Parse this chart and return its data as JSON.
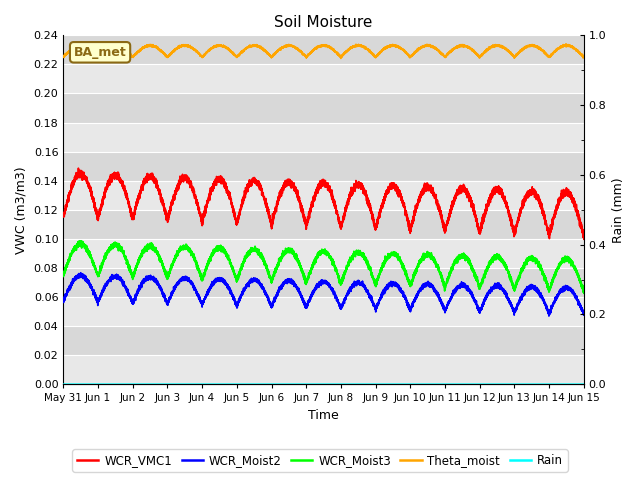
{
  "title": "Soil Moisture",
  "ylabel_left": "VWC (m3/m3)",
  "ylabel_right": "Rain (mm)",
  "xlabel": "Time",
  "ylim_left": [
    0.0,
    0.24
  ],
  "ylim_right": [
    0.0,
    1.0
  ],
  "bg_color": "#d8d8d8",
  "band_colors": [
    "#e8e8e8",
    "#d0d0d0"
  ],
  "annotation_text": "BA_met",
  "annotation_bg": "#ffffcc",
  "annotation_border": "#8b6914",
  "series_order": [
    "WCR_VMC1",
    "WCR_Moist2",
    "WCR_Moist3",
    "Theta_moist",
    "Rain"
  ],
  "series": {
    "WCR_VMC1": {
      "color": "red",
      "base": 0.13,
      "amp": 0.015,
      "trend": -0.0009,
      "phase": 0.0
    },
    "WCR_Moist2": {
      "color": "blue",
      "base": 0.066,
      "amp": 0.009,
      "trend": -0.0006,
      "phase": 0.0
    },
    "WCR_Moist3": {
      "color": "lime",
      "base": 0.086,
      "amp": 0.011,
      "trend": -0.00075,
      "phase": 0.0
    },
    "Theta_moist": {
      "color": "orange",
      "base": 0.229,
      "amp": 0.004,
      "trend": 0.0,
      "phase": 0.0
    },
    "Rain": {
      "color": "cyan",
      "base": 0.0,
      "amp": 0.0,
      "trend": 0.0,
      "phase": 0.0
    }
  },
  "xtick_labels": [
    "May 31",
    "Jun 1",
    "Jun 2",
    "Jun 3",
    "Jun 4",
    "Jun 5",
    "Jun 6",
    "Jun 7",
    "Jun 8",
    "Jun 9",
    "Jun 10",
    "Jun 11",
    "Jun 12",
    "Jun 13",
    "Jun 14",
    "Jun 15"
  ],
  "yticks_left": [
    0.0,
    0.02,
    0.04,
    0.06,
    0.08,
    0.1,
    0.12,
    0.14,
    0.16,
    0.18,
    0.2,
    0.22,
    0.24
  ],
  "yticks_right": [
    0.0,
    0.2,
    0.4,
    0.6,
    0.8,
    1.0
  ],
  "legend_entries": [
    {
      "label": "WCR_VMC1",
      "color": "red"
    },
    {
      "label": "WCR_Moist2",
      "color": "blue"
    },
    {
      "label": "WCR_Moist3",
      "color": "lime"
    },
    {
      "label": "Theta_moist",
      "color": "orange"
    },
    {
      "label": "Rain",
      "color": "cyan"
    }
  ]
}
